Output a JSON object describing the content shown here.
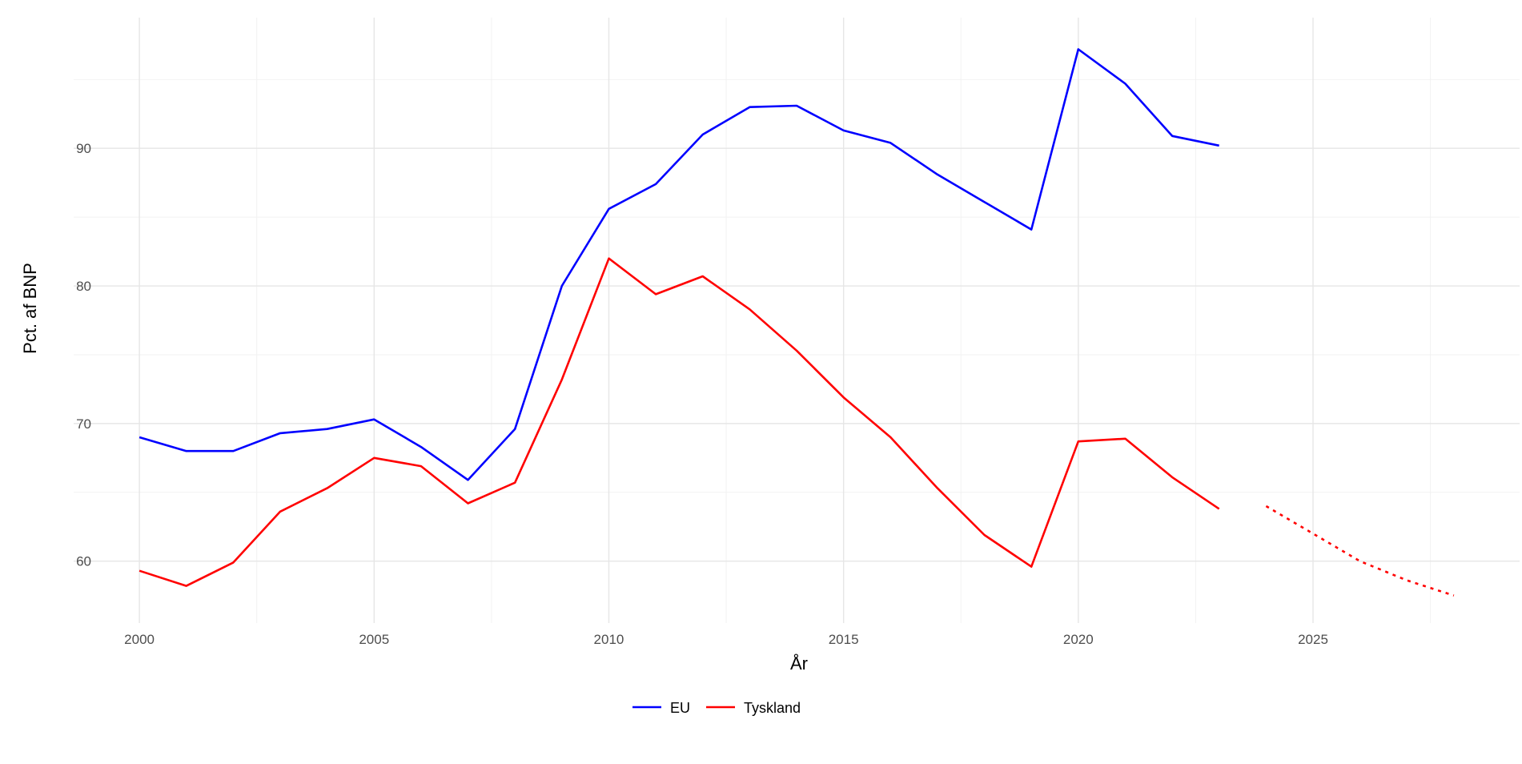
{
  "chart_data": {
    "type": "line",
    "xlabel": "År",
    "ylabel": "Pct. af BNP",
    "xlim": [
      1998.6,
      2029.4
    ],
    "ylim": [
      55.5,
      99.5
    ],
    "x_ticks": [
      2000,
      2005,
      2010,
      2015,
      2020,
      2025
    ],
    "y_ticks": [
      60,
      70,
      80,
      90
    ],
    "grid": true,
    "legend_position": "bottom",
    "colors": {
      "EU": "#0000ff",
      "Tyskland": "#ff0000"
    },
    "series": [
      {
        "name": "EU",
        "color": "#0000ff",
        "style": "solid",
        "x": [
          2000,
          2001,
          2002,
          2003,
          2004,
          2005,
          2006,
          2007,
          2008,
          2009,
          2010,
          2011,
          2012,
          2013,
          2014,
          2015,
          2016,
          2017,
          2018,
          2019,
          2020,
          2021,
          2022,
          2023
        ],
        "y": [
          69.0,
          68.0,
          68.0,
          69.3,
          69.6,
          70.3,
          68.3,
          65.9,
          69.6,
          80.0,
          85.6,
          87.4,
          91.0,
          93.0,
          93.1,
          91.3,
          90.4,
          88.1,
          86.1,
          84.1,
          97.2,
          94.7,
          90.9,
          90.2
        ]
      },
      {
        "name": "Tyskland",
        "color": "#ff0000",
        "style": "solid",
        "x": [
          2000,
          2001,
          2002,
          2003,
          2004,
          2005,
          2006,
          2007,
          2008,
          2009,
          2010,
          2011,
          2012,
          2013,
          2014,
          2015,
          2016,
          2017,
          2018,
          2019,
          2020,
          2021,
          2022,
          2023
        ],
        "y": [
          59.3,
          58.2,
          59.9,
          63.6,
          65.3,
          67.5,
          66.9,
          64.2,
          65.7,
          73.2,
          82.0,
          79.4,
          80.7,
          78.3,
          75.3,
          71.9,
          69.0,
          65.3,
          61.9,
          59.6,
          68.7,
          68.9,
          66.1,
          63.8
        ]
      },
      {
        "name": "Tyskland",
        "color": "#ff0000",
        "style": "dotted",
        "x": [
          2024,
          2025,
          2026,
          2027,
          2028
        ],
        "y": [
          64.0,
          62.0,
          60.0,
          58.6,
          57.5
        ]
      }
    ],
    "legend": [
      {
        "label": "EU",
        "color": "#0000ff"
      },
      {
        "label": "Tyskland",
        "color": "#ff0000"
      }
    ]
  }
}
